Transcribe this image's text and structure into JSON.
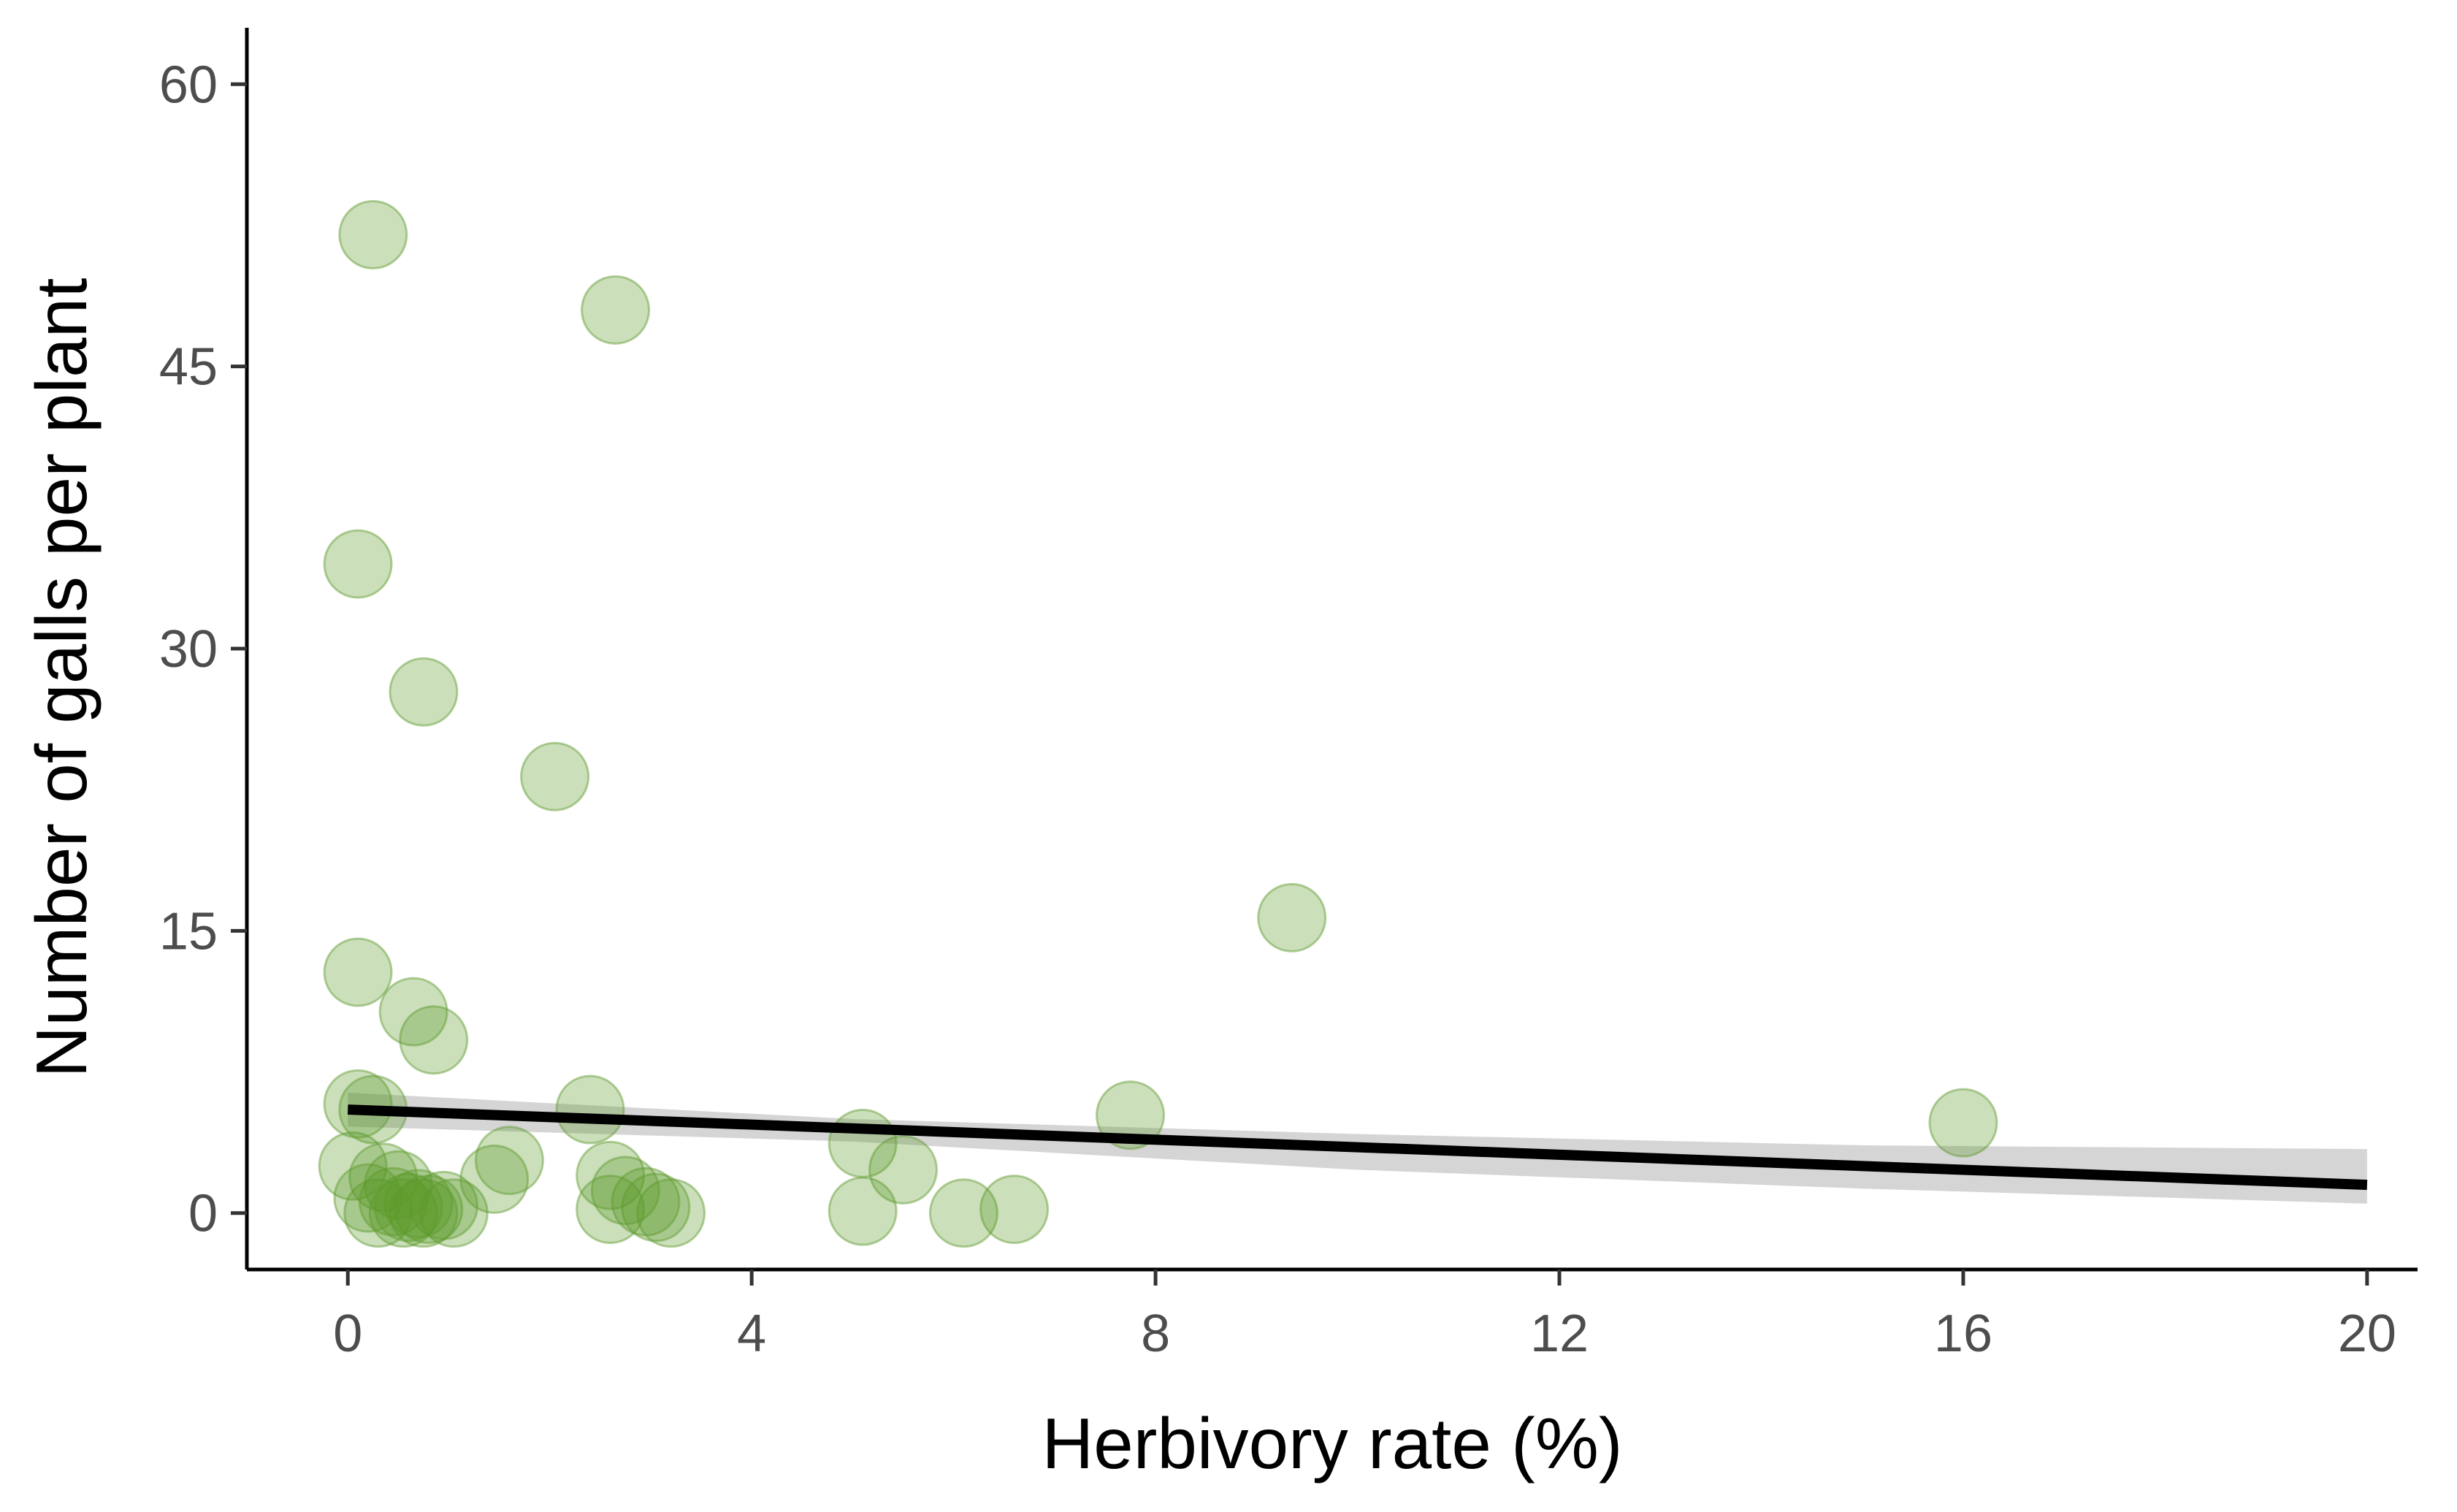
{
  "chart_data": {
    "type": "scatter",
    "title": "",
    "xlabel": "Herbivory rate (%)",
    "ylabel": "Number of galls per plant",
    "xlim": [
      -1,
      20.5
    ],
    "ylim": [
      -3,
      63
    ],
    "x_ticks": [
      0,
      4,
      8,
      12,
      16,
      20
    ],
    "y_ticks": [
      0,
      15,
      30,
      45,
      60
    ],
    "grid": false,
    "legend": "none",
    "point_color": "#5e9a2c",
    "line_color": "#000000",
    "band_color": "#bfbfbf",
    "points": [
      {
        "x": 0.25,
        "y": 52
      },
      {
        "x": 2.65,
        "y": 48
      },
      {
        "x": 0.1,
        "y": 34.5
      },
      {
        "x": 0.75,
        "y": 27.7
      },
      {
        "x": 2.05,
        "y": 23.2
      },
      {
        "x": 9.35,
        "y": 15.7
      },
      {
        "x": 0.1,
        "y": 12.8
      },
      {
        "x": 0.65,
        "y": 10.7
      },
      {
        "x": 0.85,
        "y": 9.2
      },
      {
        "x": 0.1,
        "y": 5.8
      },
      {
        "x": 0.25,
        "y": 5.5
      },
      {
        "x": 2.4,
        "y": 5.5
      },
      {
        "x": 7.75,
        "y": 5.2
      },
      {
        "x": 16.0,
        "y": 4.8
      },
      {
        "x": 5.1,
        "y": 3.7
      },
      {
        "x": 1.6,
        "y": 2.8
      },
      {
        "x": 5.5,
        "y": 2.3
      },
      {
        "x": 1.45,
        "y": 1.8
      },
      {
        "x": 2.6,
        "y": 2.0
      },
      {
        "x": 0.05,
        "y": 2.5
      },
      {
        "x": 0.35,
        "y": 1.9
      },
      {
        "x": 0.5,
        "y": 1.5
      },
      {
        "x": 2.75,
        "y": 1.2
      },
      {
        "x": 0.2,
        "y": 0.8
      },
      {
        "x": 0.45,
        "y": 0.6
      },
      {
        "x": 0.6,
        "y": 0.3
      },
      {
        "x": 0.7,
        "y": 0.5
      },
      {
        "x": 0.8,
        "y": 0.2
      },
      {
        "x": 0.95,
        "y": 0.4
      },
      {
        "x": 0.3,
        "y": 0.0
      },
      {
        "x": 0.55,
        "y": 0.0
      },
      {
        "x": 0.75,
        "y": 0.0
      },
      {
        "x": 1.05,
        "y": 0.0
      },
      {
        "x": 2.6,
        "y": 0.2
      },
      {
        "x": 2.95,
        "y": 0.6
      },
      {
        "x": 3.05,
        "y": 0.3
      },
      {
        "x": 3.2,
        "y": 0.0
      },
      {
        "x": 5.1,
        "y": 0.1
      },
      {
        "x": 6.1,
        "y": 0.0
      },
      {
        "x": 6.6,
        "y": 0.2
      }
    ],
    "fit_line": {
      "x": [
        0,
        20
      ],
      "y": [
        5.5,
        1.5
      ]
    },
    "confidence_band": {
      "x": [
        0,
        5,
        10,
        15,
        20
      ],
      "lower": [
        4.6,
        3.8,
        2.3,
        1.3,
        0.5
      ],
      "upper": [
        6.4,
        5.0,
        4.2,
        3.6,
        3.4
      ]
    }
  }
}
